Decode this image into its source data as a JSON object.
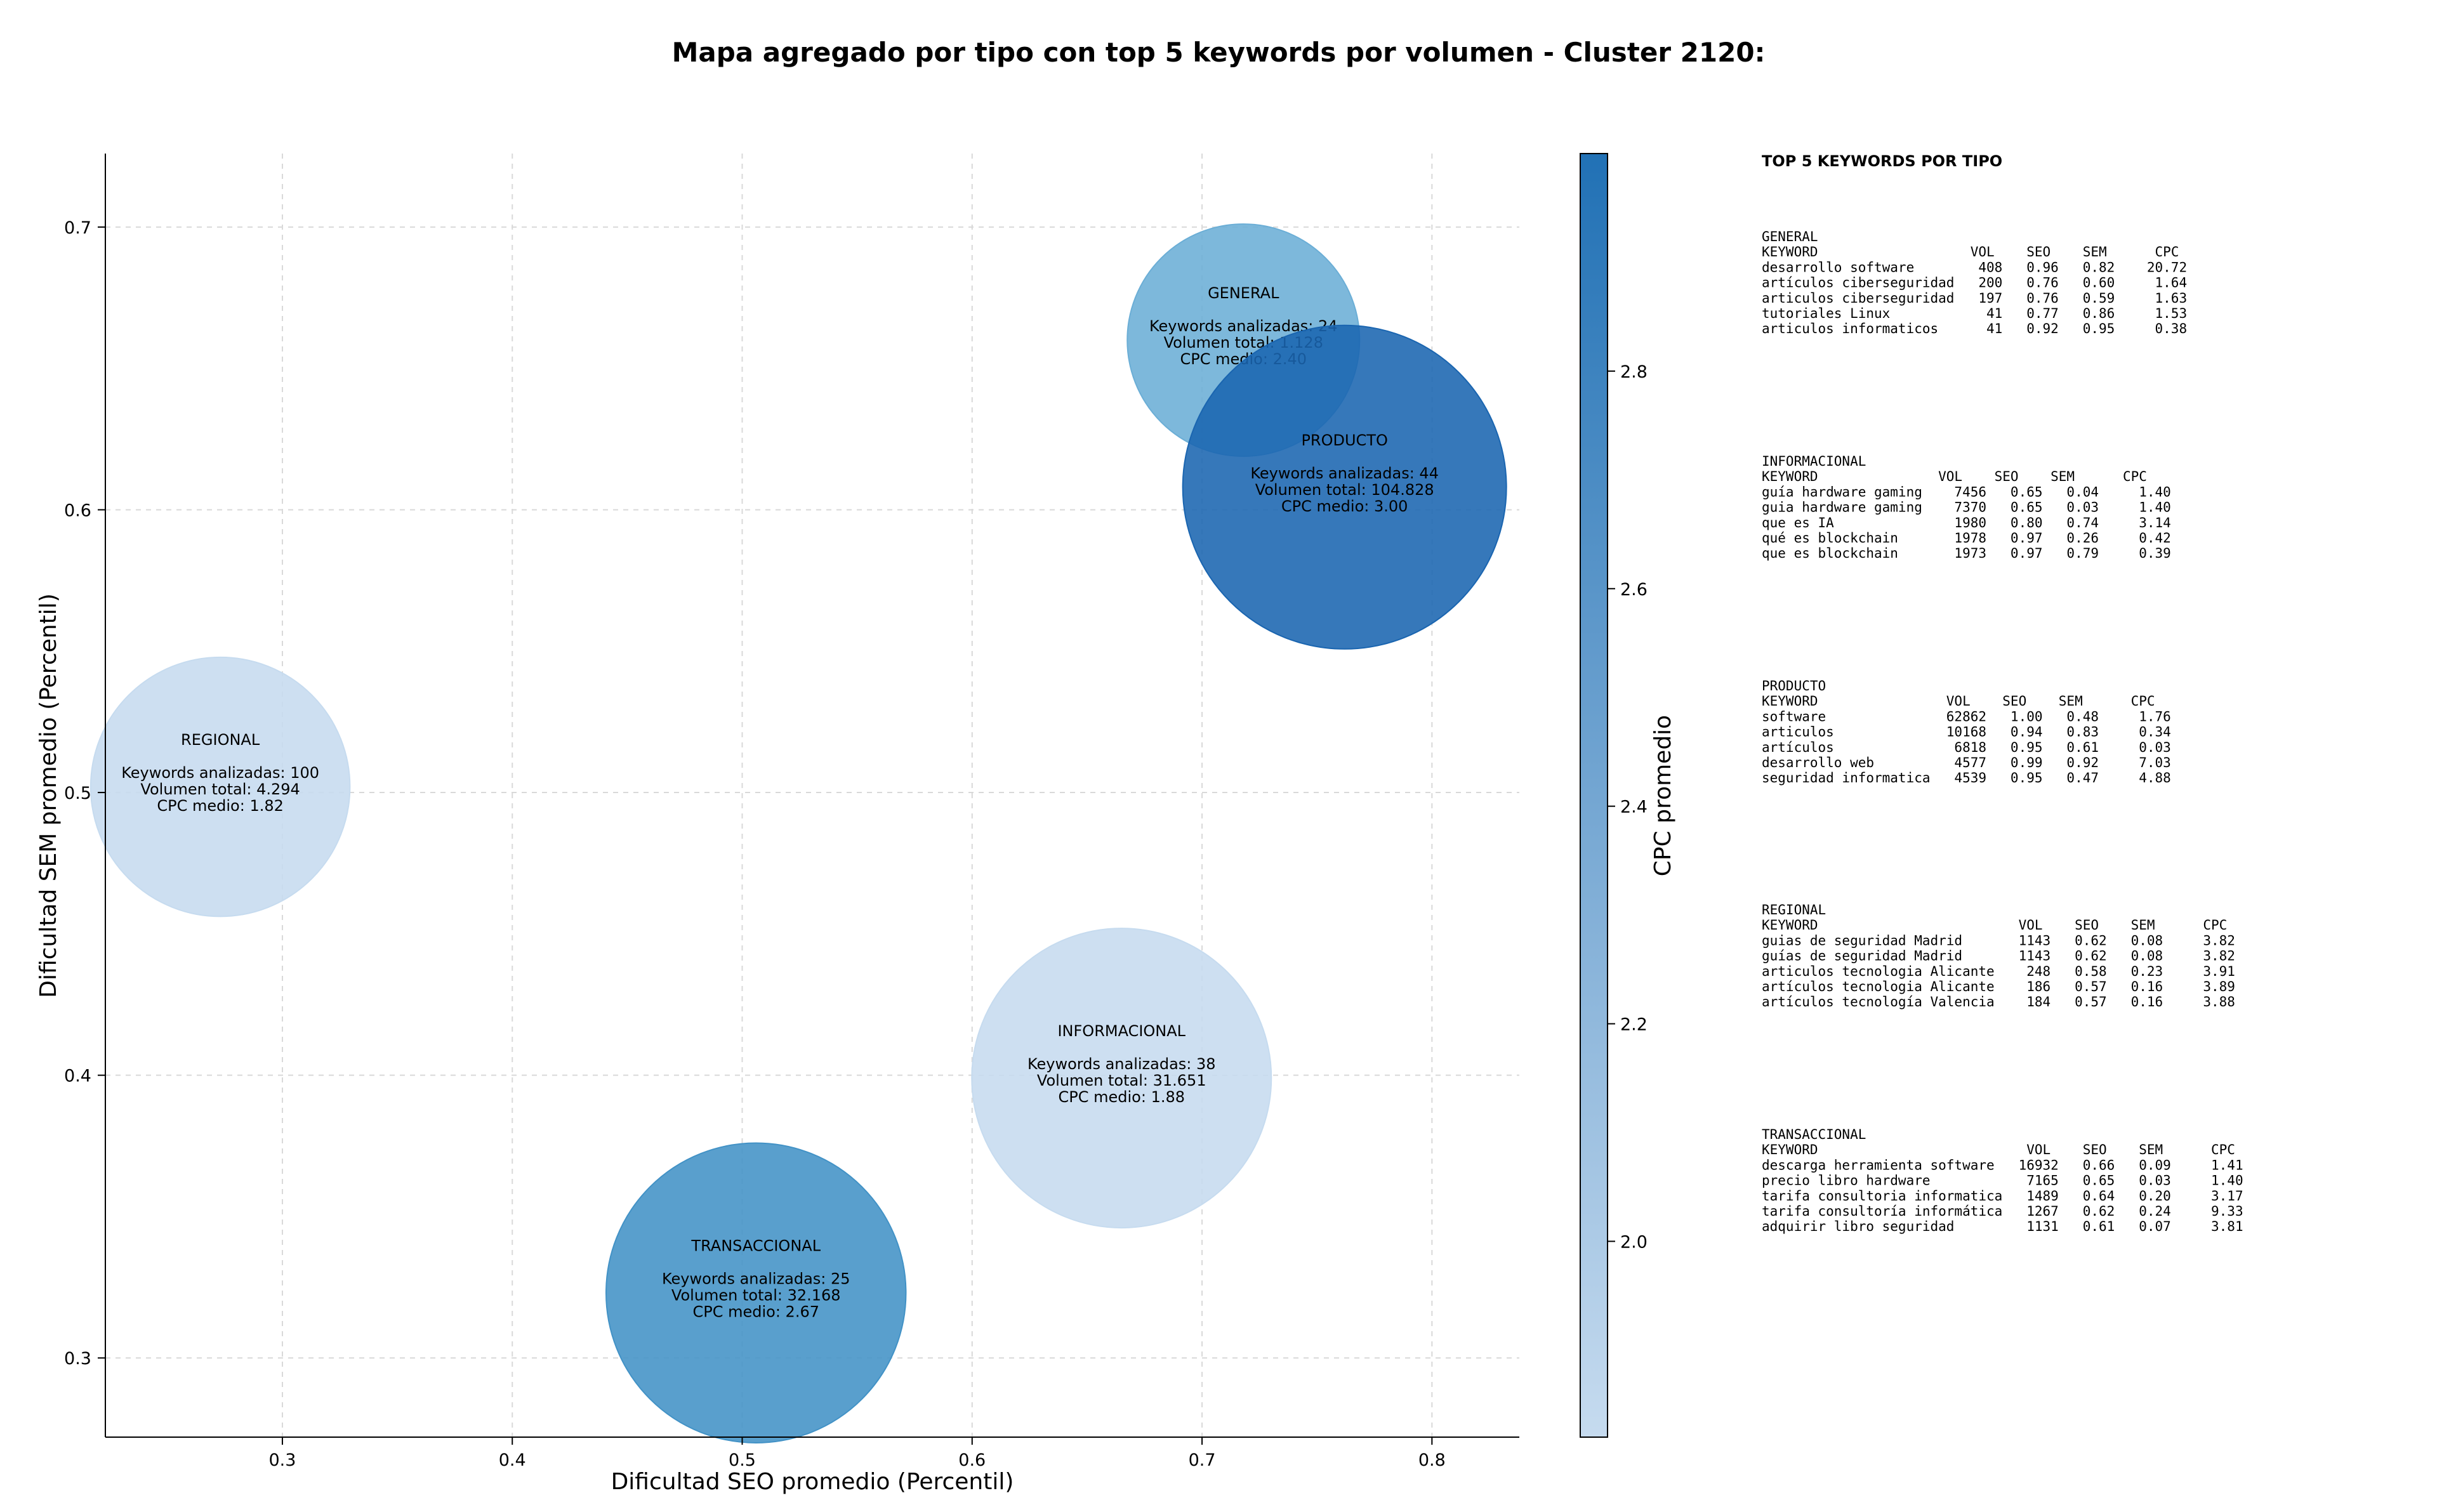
{
  "chart_data": {
    "type": "scatter",
    "title": "Mapa agregado por tipo con top 5 keywords por volumen - Cluster 2120:",
    "xlabel": "Dificultad SEO promedio (Percentil)",
    "ylabel": "Dificultad SEM promedio (Percentil)",
    "xlim": [
      0.223,
      0.838
    ],
    "ylim": [
      0.272,
      0.726
    ],
    "xticks": [
      "0.3",
      "0.4",
      "0.5",
      "0.6",
      "0.7",
      "0.8"
    ],
    "yticks": [
      "0.3",
      "0.4",
      "0.5",
      "0.6",
      "0.7"
    ],
    "grid": true,
    "colorbar": {
      "label": "CPC promedio",
      "min": 1.82,
      "max": 3.0,
      "ticks": [
        "2.0",
        "2.2",
        "2.4",
        "2.6",
        "2.8"
      ],
      "color_low": "#c6dbef",
      "color_high": "#2171b5"
    },
    "bubbles": [
      {
        "name": "GENERAL",
        "x": 0.718,
        "y": 0.66,
        "volume": 1128,
        "line1": "Keywords analizadas: 24",
        "line2": "Volumen total: 1.128",
        "line3": "CPC medio: 2.40",
        "cpc": 2.4,
        "color": "#6baed6"
      },
      {
        "name": "PRODUCTO",
        "x": 0.762,
        "y": 0.608,
        "volume": 104828,
        "line1": "Keywords analizadas: 44",
        "line2": "Volumen total: 104.828",
        "line3": "CPC medio: 3.00",
        "cpc": 3.0,
        "color": "#1a65b0"
      },
      {
        "name": "REGIONAL",
        "x": 0.273,
        "y": 0.502,
        "volume": 4294,
        "line1": "Keywords analizadas: 100",
        "line2": "Volumen total: 4.294",
        "line3": "CPC medio: 1.82",
        "cpc": 1.82,
        "color": "#c6dbef"
      },
      {
        "name": "INFORMACIONAL",
        "x": 0.665,
        "y": 0.399,
        "volume": 31651,
        "line1": "Keywords analizadas: 38",
        "line2": "Volumen total: 31.651",
        "line3": "CPC medio: 1.88",
        "cpc": 1.88,
        "color": "#c6dbef"
      },
      {
        "name": "TRANSACCIONAL",
        "x": 0.506,
        "y": 0.323,
        "volume": 32168,
        "line1": "Keywords analizadas: 25",
        "line2": "Volumen total: 32.168",
        "line3": "CPC medio: 2.67",
        "cpc": 2.67,
        "color": "#4292c6"
      }
    ]
  },
  "side_panel": {
    "heading": "TOP 5 KEYWORDS POR TIPO",
    "groups": [
      {
        "name": "GENERAL",
        "header": "KEYWORD                   VOL    SEO    SEM      CPC",
        "rows": [
          "desarrollo software        408   0.96   0.82    20.72",
          "artículos ciberseguridad   200   0.76   0.60     1.64",
          "articulos ciberseguridad   197   0.76   0.59     1.63",
          "tutoriales Linux            41   0.77   0.86     1.53",
          "articulos informaticos      41   0.92   0.95     0.38"
        ]
      },
      {
        "name": "INFORMACIONAL",
        "header": "KEYWORD               VOL    SEO    SEM      CPC",
        "rows": [
          "guía hardware gaming    7456   0.65   0.04     1.40",
          "guia hardware gaming    7370   0.65   0.03     1.40",
          "que es IA               1980   0.80   0.74     3.14",
          "qué es blockchain       1978   0.97   0.26     0.42",
          "que es blockchain       1973   0.97   0.79     0.39"
        ]
      },
      {
        "name": "PRODUCTO",
        "header": "KEYWORD                VOL    SEO    SEM      CPC",
        "rows": [
          "software               62862   1.00   0.48     1.76",
          "articulos              10168   0.94   0.83     0.34",
          "artículos               6818   0.95   0.61     0.03",
          "desarrollo web          4577   0.99   0.92     7.03",
          "seguridad informatica   4539   0.95   0.47     4.88"
        ]
      },
      {
        "name": "REGIONAL",
        "header": "KEYWORD                         VOL    SEO    SEM      CPC",
        "rows": [
          "guias de seguridad Madrid       1143   0.62   0.08     3.82",
          "guías de seguridad Madrid       1143   0.62   0.08     3.82",
          "articulos tecnologia Alicante    248   0.58   0.23     3.91",
          "artículos tecnologia Alicante    186   0.57   0.16     3.89",
          "artículos tecnología Valencia    184   0.57   0.16     3.88"
        ]
      },
      {
        "name": "TRANSACCIONAL",
        "header": "KEYWORD                          VOL    SEO    SEM      CPC",
        "rows": [
          "descarga herramienta software   16932   0.66   0.09     1.41",
          "precio libro hardware            7165   0.65   0.03     1.40",
          "tarifa consultoria informatica   1489   0.64   0.20     3.17",
          "tarifa consultoría informática   1267   0.62   0.24     9.33",
          "adquirir libro seguridad         1131   0.61   0.07     3.81"
        ]
      }
    ]
  }
}
